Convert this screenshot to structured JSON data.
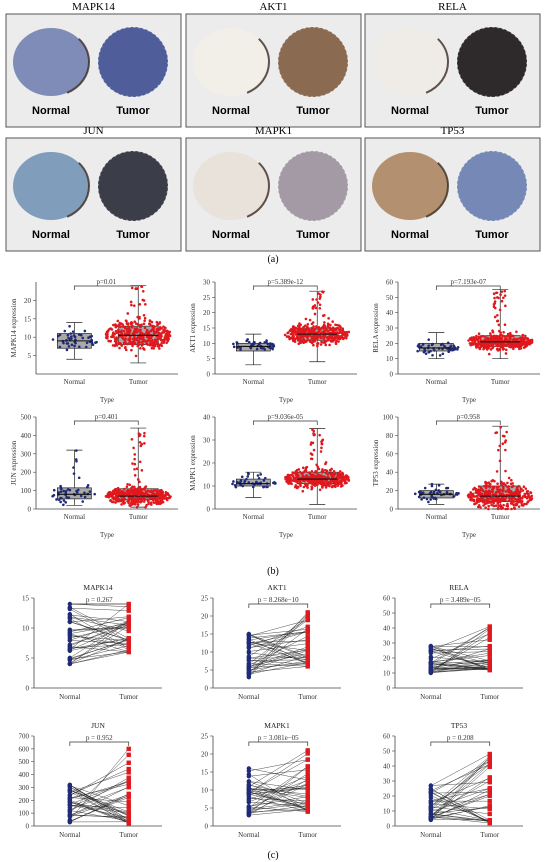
{
  "figure": {
    "panel_labels": [
      "(a)",
      "(b)",
      "(c)"
    ],
    "ihc": {
      "tissue_labels": [
        "Normal",
        "Tumor"
      ],
      "genes": [
        "MAPK14",
        "AKT1",
        "RELA",
        "JUN",
        "MAPK1",
        "TP53"
      ],
      "colors": {
        "normal_tissue": [
          "#6b7bae",
          "#f3efe8",
          "#f0ece6",
          "#6d8fb3",
          "#e8e1d8",
          "#a9805a"
        ],
        "tumor_tissue": [
          "#4f5e9b",
          "#8b6a52",
          "#2e2a2c",
          "#3b3d48",
          "#a39aa6",
          "#7688b5"
        ]
      }
    }
  },
  "chart_data": [
    {
      "type": "box",
      "panel": "b",
      "gene": "MAPK14",
      "xlabel": "Type",
      "ylabel": "MAPK14 expression",
      "categories": [
        "Normal",
        "Tumor"
      ],
      "ylim": [
        0,
        25
      ],
      "yticks": [
        5,
        10,
        15,
        20
      ],
      "pvalue": "p=0.01",
      "stats": {
        "Normal": {
          "min": 4,
          "q1": 7,
          "median": 9,
          "q3": 11,
          "max": 14
        },
        "Tumor": {
          "min": 3,
          "q1": 8,
          "median": 10.5,
          "q3": 13,
          "max": 24
        }
      }
    },
    {
      "type": "box",
      "panel": "b",
      "gene": "AKT1",
      "xlabel": "Type",
      "ylabel": "AKT1 expression",
      "categories": [
        "Normal",
        "Tumor"
      ],
      "ylim": [
        0,
        30
      ],
      "yticks": [
        0,
        5,
        10,
        15,
        20,
        25,
        30
      ],
      "pvalue": "p=5.389e-12",
      "stats": {
        "Normal": {
          "min": 3,
          "q1": 7.5,
          "median": 9,
          "q3": 10,
          "max": 13
        },
        "Tumor": {
          "min": 4,
          "q1": 11,
          "median": 13,
          "q3": 15,
          "max": 27
        }
      }
    },
    {
      "type": "box",
      "panel": "b",
      "gene": "RELA",
      "xlabel": "Type",
      "ylabel": "RELA expression",
      "categories": [
        "Normal",
        "Tumor"
      ],
      "ylim": [
        0,
        60
      ],
      "yticks": [
        0,
        10,
        20,
        30,
        40,
        50,
        60
      ],
      "pvalue": "p=7.193e-07",
      "stats": {
        "Normal": {
          "min": 10,
          "q1": 15,
          "median": 17,
          "q3": 20,
          "max": 27
        },
        "Tumor": {
          "min": 10,
          "q1": 18,
          "median": 21,
          "q3": 25,
          "max": 55
        }
      }
    },
    {
      "type": "box",
      "panel": "b",
      "gene": "JUN",
      "xlabel": "Type",
      "ylabel": "JUN expression",
      "categories": [
        "Normal",
        "Tumor"
      ],
      "ylim": [
        0,
        500
      ],
      "yticks": [
        0,
        100,
        200,
        300,
        400,
        500
      ],
      "pvalue": "p=0.401",
      "stats": {
        "Normal": {
          "min": 20,
          "q1": 55,
          "median": 80,
          "q3": 115,
          "max": 320
        },
        "Tumor": {
          "min": 10,
          "q1": 50,
          "median": 70,
          "q3": 110,
          "max": 440
        }
      }
    },
    {
      "type": "box",
      "panel": "b",
      "gene": "MAPK1",
      "xlabel": "Type",
      "ylabel": "MAPK1 expression",
      "categories": [
        "Normal",
        "Tumor"
      ],
      "ylim": [
        0,
        40
      ],
      "yticks": [
        0,
        10,
        20,
        30,
        40
      ],
      "pvalue": "p=9.036e-05",
      "stats": {
        "Normal": {
          "min": 5,
          "q1": 10,
          "median": 11,
          "q3": 13,
          "max": 16
        },
        "Tumor": {
          "min": 2,
          "q1": 11,
          "median": 13,
          "q3": 16,
          "max": 35
        }
      }
    },
    {
      "type": "box",
      "panel": "b",
      "gene": "TP53",
      "xlabel": "Type",
      "ylabel": "TP53 expression",
      "categories": [
        "Normal",
        "Tumor"
      ],
      "ylim": [
        0,
        100
      ],
      "yticks": [
        0,
        20,
        40,
        60,
        80,
        100
      ],
      "pvalue": "p=0.958",
      "stats": {
        "Normal": {
          "min": 5,
          "q1": 12,
          "median": 16,
          "q3": 20,
          "max": 27
        },
        "Tumor": {
          "min": 0,
          "q1": 8,
          "median": 14,
          "q3": 25,
          "max": 90
        }
      }
    },
    {
      "type": "paired",
      "panel": "c",
      "gene": "MAPK14",
      "title": "MAPK14",
      "categories": [
        "Normal",
        "Tumor"
      ],
      "ylim": [
        0,
        15
      ],
      "yticks": [
        0,
        5,
        10,
        15
      ],
      "pvalue": "p = 0.267",
      "normal_range": [
        4,
        14
      ],
      "tumor_range": [
        6,
        14
      ]
    },
    {
      "type": "paired",
      "panel": "c",
      "gene": "AKT1",
      "title": "AKT1",
      "categories": [
        "Normal",
        "Tumor"
      ],
      "ylim": [
        0,
        25
      ],
      "yticks": [
        0,
        5,
        10,
        15,
        20,
        25
      ],
      "pvalue": "p = 8.268e−10",
      "normal_range": [
        3,
        15
      ],
      "tumor_range": [
        6,
        21
      ]
    },
    {
      "type": "paired",
      "panel": "c",
      "gene": "RELA",
      "title": "RELA",
      "categories": [
        "Normal",
        "Tumor"
      ],
      "ylim": [
        0,
        60
      ],
      "yticks": [
        0,
        10,
        20,
        30,
        40,
        50,
        60
      ],
      "pvalue": "p = 3.489e−05",
      "normal_range": [
        10,
        28
      ],
      "tumor_range": [
        12,
        41
      ]
    },
    {
      "type": "paired",
      "panel": "c",
      "gene": "JUN",
      "title": "JUN",
      "categories": [
        "Normal",
        "Tumor"
      ],
      "ylim": [
        0,
        700
      ],
      "yticks": [
        0,
        100,
        200,
        300,
        400,
        500,
        600,
        700
      ],
      "pvalue": "p = 0.952",
      "normal_range": [
        30,
        320
      ],
      "tumor_range": [
        20,
        600
      ]
    },
    {
      "type": "paired",
      "panel": "c",
      "gene": "MAPK1",
      "title": "MAPK1",
      "categories": [
        "Normal",
        "Tumor"
      ],
      "ylim": [
        0,
        25
      ],
      "yticks": [
        0,
        5,
        10,
        15,
        20,
        25
      ],
      "pvalue": "p = 3.081e−05",
      "normal_range": [
        3,
        16
      ],
      "tumor_range": [
        4,
        21
      ]
    },
    {
      "type": "paired",
      "panel": "c",
      "gene": "TP53",
      "title": "TP53",
      "categories": [
        "Normal",
        "Tumor"
      ],
      "ylim": [
        0,
        60
      ],
      "yticks": [
        0,
        10,
        20,
        30,
        40,
        50,
        60
      ],
      "pvalue": "p = 0.208",
      "normal_range": [
        4,
        27
      ],
      "tumor_range": [
        2,
        48
      ]
    }
  ]
}
